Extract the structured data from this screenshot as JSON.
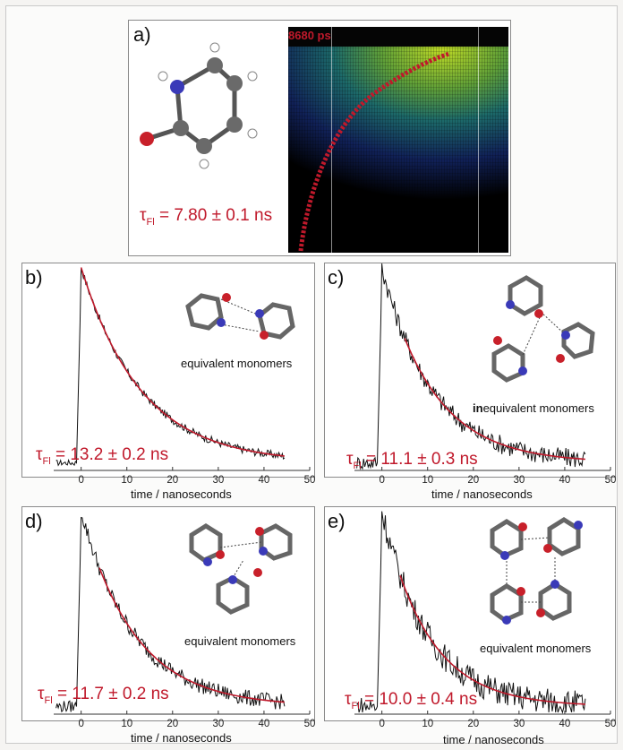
{
  "panels": {
    "a": {
      "label": "a)",
      "streak_time": "8680 ps",
      "tau_text": " = 7.80 ± 0.1 ns"
    },
    "b": {
      "label": "b)",
      "caption_text": "equivalent monomers",
      "tau_text": " = 13.2 ± 0.2 ns"
    },
    "c": {
      "label": "c)",
      "caption_bold": "in",
      "caption_text": "equivalent monomers",
      "tau_text": " = 11.1 ± 0.3 ns"
    },
    "d": {
      "label": "d)",
      "caption_text": "equivalent monomers",
      "tau_text": " = 11.7 ± 0.2 ns"
    },
    "e": {
      "label": "e)",
      "caption_text": "equivalent monomers",
      "tau_text": " = 10.0 ± 0.4 ns"
    }
  },
  "tau_symbol": "τ",
  "tau_sub": "Fl",
  "colors": {
    "fit": "#c0192b",
    "trace": "#111111",
    "carbon": "#777777",
    "nitrogen": "#3a3ab8",
    "oxygen": "#c8202a",
    "hydrogen": "#ffffff"
  },
  "chart_data": [
    {
      "panel": "b",
      "type": "line",
      "xlabel": "time / nanoseconds",
      "xticks": [
        0,
        10,
        20,
        30,
        40,
        50
      ],
      "xlim": [
        -6,
        50
      ],
      "series": [
        {
          "kind": "decay",
          "onset": 0,
          "tau": 13.2,
          "amplitude": 1.0,
          "baseline": 0.03,
          "noise": 0.02
        },
        {
          "kind": "exp_fit",
          "tau": 13.2,
          "x_start": 0,
          "x_end": 44.5
        }
      ]
    },
    {
      "panel": "c",
      "type": "line",
      "xlabel": "time / nanoseconds",
      "xticks": [
        0,
        10,
        20,
        30,
        40,
        50
      ],
      "xlim": [
        -6,
        50
      ],
      "series": [
        {
          "kind": "decay",
          "onset": 0,
          "tau": 11.1,
          "amplitude": 1.0,
          "baseline": 0.03,
          "noise": 0.05
        },
        {
          "kind": "exp_fit",
          "tau": 11.1,
          "x_start": 5,
          "x_end": 44.5
        }
      ]
    },
    {
      "panel": "d",
      "type": "line",
      "xlabel": "time / nanoseconds",
      "xticks": [
        0,
        10,
        20,
        30,
        40,
        50
      ],
      "xlim": [
        -6,
        50
      ],
      "series": [
        {
          "kind": "decay",
          "onset": 0,
          "tau": 11.7,
          "amplitude": 1.0,
          "baseline": 0.03,
          "noise": 0.04
        },
        {
          "kind": "exp_fit",
          "tau": 11.7,
          "x_start": 4,
          "x_end": 44.5
        }
      ]
    },
    {
      "panel": "e",
      "type": "line",
      "xlabel": "time / nanoseconds",
      "xticks": [
        0,
        10,
        20,
        30,
        40,
        50
      ],
      "xlim": [
        -6,
        50
      ],
      "series": [
        {
          "kind": "decay",
          "onset": 0,
          "tau": 10.0,
          "amplitude": 1.0,
          "baseline": 0.03,
          "noise": 0.07
        },
        {
          "kind": "exp_fit",
          "tau": 10.0,
          "x_start": 4,
          "x_end": 44.5
        }
      ]
    }
  ]
}
